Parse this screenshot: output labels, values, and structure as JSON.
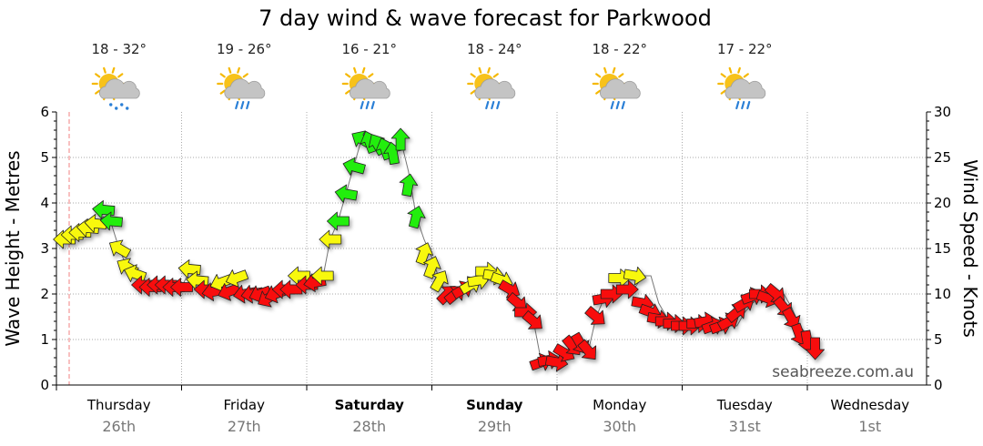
{
  "chart_data": {
    "type": "line",
    "title": "7 day wind & wave forecast for Parkwood",
    "left_axis_label": "Wave Height - Metres",
    "right_axis_label": "Wind Speed - Knots",
    "left_ylim": [
      0,
      6
    ],
    "left_ticks": [
      "0",
      "1",
      "2",
      "3",
      "4",
      "5",
      "6"
    ],
    "right_ylim": [
      0,
      30
    ],
    "right_ticks": [
      "0",
      "5",
      "10",
      "15",
      "20",
      "25",
      "30"
    ],
    "grid": true,
    "brand": "seabreeze.com.au",
    "days": [
      {
        "name": "Thursday",
        "date": "26th",
        "bold": false,
        "temp": "18 - 32°",
        "icon": "sun-cloud-showers-icon"
      },
      {
        "name": "Friday",
        "date": "27th",
        "bold": false,
        "temp": "19 - 26°",
        "icon": "sun-cloud-rain-icon"
      },
      {
        "name": "Saturday",
        "date": "28th",
        "bold": true,
        "temp": "16 - 21°",
        "icon": "sun-cloud-rain-icon"
      },
      {
        "name": "Sunday",
        "date": "29th",
        "bold": true,
        "temp": "18 - 24°",
        "icon": "sun-cloud-rain-icon"
      },
      {
        "name": "Monday",
        "date": "30th",
        "bold": false,
        "temp": "18 - 22°",
        "icon": "sun-cloud-rain-icon"
      },
      {
        "name": "Tuesday",
        "date": "31st",
        "bold": false,
        "temp": "17 - 22°",
        "icon": "sun-cloud-rain-icon"
      },
      {
        "name": "Wednesday",
        "date": "1st",
        "bold": false,
        "temp": "",
        "icon": ""
      }
    ],
    "wind_colors": {
      "light": "#f8f80a",
      "moderate": "#22ee10",
      "strong": "#f80a0a"
    },
    "wave_line": {
      "color": "#777777",
      "values": [
        3.3,
        3.3,
        3.35,
        3.45,
        3.55,
        3.7,
        3.55,
        3.0,
        2.6,
        2.45,
        2.2,
        2.15,
        2.2,
        2.2,
        2.15,
        2.15,
        2.5,
        2.3,
        2.1,
        2.05,
        2.1,
        2.0,
        2.1,
        2.0,
        2.0,
        2.0,
        1.9,
        2.0,
        2.1,
        2.1,
        2.2,
        2.3,
        2.25,
        2.3,
        3.2,
        3.6,
        4.2,
        4.8,
        5.4,
        5.4,
        5.3,
        5.2,
        5.1,
        5.4,
        4.7,
        3.7,
        3.2,
        2.8,
        2.3,
        2.0,
        2.0,
        2.1,
        2.2,
        2.3,
        2.3,
        2.35,
        2.3,
        2.0,
        1.7,
        1.6,
        1.4,
        0.5,
        0.5,
        0.55,
        0.6,
        0.8,
        0.9,
        0.75,
        1.5,
        1.9,
        2.0,
        2.1,
        2.1,
        2.15,
        2.4,
        2.4,
        1.8,
        1.5,
        1.4,
        1.3,
        1.3,
        1.3,
        1.35,
        1.4,
        1.3,
        1.3,
        1.3,
        1.6,
        1.8,
        1.9,
        2.0,
        1.9,
        2.0,
        1.7,
        1.3,
        1.1,
        0.9
      ]
    },
    "wind": {
      "step_hours": 1.5,
      "arrows": [
        {
          "y": 3.2,
          "dir": 270,
          "band": "light"
        },
        {
          "y": 3.3,
          "dir": 270,
          "band": "light"
        },
        {
          "y": 3.35,
          "dir": 270,
          "band": "light"
        },
        {
          "y": 3.45,
          "dir": 275,
          "band": "light"
        },
        {
          "y": 3.55,
          "dir": 275,
          "band": "light"
        },
        {
          "y": 3.85,
          "dir": 275,
          "band": "moderate"
        },
        {
          "y": 3.6,
          "dir": 275,
          "band": "moderate"
        },
        {
          "y": 3.0,
          "dir": 300,
          "band": "light"
        },
        {
          "y": 2.6,
          "dir": 300,
          "band": "light"
        },
        {
          "y": 2.45,
          "dir": 290,
          "band": "light"
        },
        {
          "y": 2.2,
          "dir": 270,
          "band": "strong"
        },
        {
          "y": 2.15,
          "dir": 270,
          "band": "strong"
        },
        {
          "y": 2.2,
          "dir": 270,
          "band": "strong"
        },
        {
          "y": 2.2,
          "dir": 270,
          "band": "strong"
        },
        {
          "y": 2.15,
          "dir": 270,
          "band": "strong"
        },
        {
          "y": 2.15,
          "dir": 270,
          "band": "strong"
        },
        {
          "y": 2.55,
          "dir": 275,
          "band": "light"
        },
        {
          "y": 2.3,
          "dir": 275,
          "band": "light"
        },
        {
          "y": 2.1,
          "dir": 270,
          "band": "strong"
        },
        {
          "y": 2.05,
          "dir": 260,
          "band": "strong"
        },
        {
          "y": 2.25,
          "dir": 250,
          "band": "light"
        },
        {
          "y": 2.05,
          "dir": 250,
          "band": "strong"
        },
        {
          "y": 2.35,
          "dir": 250,
          "band": "light"
        },
        {
          "y": 2.0,
          "dir": 260,
          "band": "strong"
        },
        {
          "y": 2.0,
          "dir": 260,
          "band": "strong"
        },
        {
          "y": 2.0,
          "dir": 250,
          "band": "strong"
        },
        {
          "y": 1.9,
          "dir": 240,
          "band": "strong"
        },
        {
          "y": 2.0,
          "dir": 250,
          "band": "strong"
        },
        {
          "y": 2.1,
          "dir": 270,
          "band": "strong"
        },
        {
          "y": 2.1,
          "dir": 270,
          "band": "strong"
        },
        {
          "y": 2.4,
          "dir": 270,
          "band": "light"
        },
        {
          "y": 2.2,
          "dir": 270,
          "band": "strong"
        },
        {
          "y": 2.25,
          "dir": 260,
          "band": "strong"
        },
        {
          "y": 2.4,
          "dir": 270,
          "band": "light"
        },
        {
          "y": 3.2,
          "dir": 270,
          "band": "light"
        },
        {
          "y": 3.6,
          "dir": 270,
          "band": "moderate"
        },
        {
          "y": 4.2,
          "dir": 280,
          "band": "moderate"
        },
        {
          "y": 4.8,
          "dir": 285,
          "band": "moderate"
        },
        {
          "y": 5.4,
          "dir": 300,
          "band": "moderate"
        },
        {
          "y": 5.35,
          "dir": 340,
          "band": "moderate"
        },
        {
          "y": 5.3,
          "dir": 330,
          "band": "moderate"
        },
        {
          "y": 5.2,
          "dir": 340,
          "band": "moderate"
        },
        {
          "y": 5.1,
          "dir": 350,
          "band": "moderate"
        },
        {
          "y": 5.4,
          "dir": 0,
          "band": "moderate"
        },
        {
          "y": 4.4,
          "dir": 10,
          "band": "moderate"
        },
        {
          "y": 3.7,
          "dir": 15,
          "band": "moderate"
        },
        {
          "y": 2.9,
          "dir": 20,
          "band": "light"
        },
        {
          "y": 2.6,
          "dir": 20,
          "band": "light"
        },
        {
          "y": 2.3,
          "dir": 30,
          "band": "light"
        },
        {
          "y": 2.0,
          "dir": 45,
          "band": "strong"
        },
        {
          "y": 2.0,
          "dir": 50,
          "band": "strong"
        },
        {
          "y": 2.1,
          "dir": 60,
          "band": "strong"
        },
        {
          "y": 2.2,
          "dir": 60,
          "band": "light"
        },
        {
          "y": 2.3,
          "dir": 80,
          "band": "light"
        },
        {
          "y": 2.5,
          "dir": 90,
          "band": "light"
        },
        {
          "y": 2.4,
          "dir": 100,
          "band": "light"
        },
        {
          "y": 2.3,
          "dir": 110,
          "band": "light"
        },
        {
          "y": 2.1,
          "dir": 120,
          "band": "strong"
        },
        {
          "y": 1.8,
          "dir": 130,
          "band": "strong"
        },
        {
          "y": 1.6,
          "dir": 90,
          "band": "strong"
        },
        {
          "y": 1.4,
          "dir": 130,
          "band": "strong"
        },
        {
          "y": 0.5,
          "dir": 70,
          "band": "strong"
        },
        {
          "y": 0.55,
          "dir": 80,
          "band": "strong"
        },
        {
          "y": 0.5,
          "dir": 100,
          "band": "strong"
        },
        {
          "y": 0.7,
          "dir": 120,
          "band": "strong"
        },
        {
          "y": 0.85,
          "dir": 140,
          "band": "strong"
        },
        {
          "y": 0.9,
          "dir": 150,
          "band": "strong"
        },
        {
          "y": 0.75,
          "dir": 140,
          "band": "strong"
        },
        {
          "y": 1.5,
          "dir": 130,
          "band": "strong"
        },
        {
          "y": 1.9,
          "dir": 80,
          "band": "strong"
        },
        {
          "y": 2.0,
          "dir": 90,
          "band": "strong"
        },
        {
          "y": 2.35,
          "dir": 90,
          "band": "light"
        },
        {
          "y": 2.1,
          "dir": 90,
          "band": "strong"
        },
        {
          "y": 2.4,
          "dir": 100,
          "band": "light"
        },
        {
          "y": 1.8,
          "dir": 100,
          "band": "strong"
        },
        {
          "y": 1.6,
          "dir": 110,
          "band": "strong"
        },
        {
          "y": 1.45,
          "dir": 100,
          "band": "strong"
        },
        {
          "y": 1.4,
          "dir": 90,
          "band": "strong"
        },
        {
          "y": 1.35,
          "dir": 90,
          "band": "strong"
        },
        {
          "y": 1.3,
          "dir": 90,
          "band": "strong"
        },
        {
          "y": 1.3,
          "dir": 90,
          "band": "strong"
        },
        {
          "y": 1.35,
          "dir": 90,
          "band": "strong"
        },
        {
          "y": 1.4,
          "dir": 80,
          "band": "strong"
        },
        {
          "y": 1.3,
          "dir": 70,
          "band": "strong"
        },
        {
          "y": 1.3,
          "dir": 70,
          "band": "strong"
        },
        {
          "y": 1.4,
          "dir": 60,
          "band": "strong"
        },
        {
          "y": 1.6,
          "dir": 50,
          "band": "strong"
        },
        {
          "y": 1.8,
          "dir": 60,
          "band": "strong"
        },
        {
          "y": 1.95,
          "dir": 70,
          "band": "strong"
        },
        {
          "y": 2.0,
          "dir": 90,
          "band": "strong"
        },
        {
          "y": 1.9,
          "dir": 110,
          "band": "strong"
        },
        {
          "y": 2.0,
          "dir": 130,
          "band": "strong"
        },
        {
          "y": 1.7,
          "dir": 140,
          "band": "strong"
        },
        {
          "y": 1.45,
          "dir": 150,
          "band": "strong"
        },
        {
          "y": 1.1,
          "dir": 160,
          "band": "strong"
        },
        {
          "y": 0.95,
          "dir": 170,
          "band": "strong"
        },
        {
          "y": 0.8,
          "dir": 180,
          "band": "strong"
        }
      ]
    }
  }
}
